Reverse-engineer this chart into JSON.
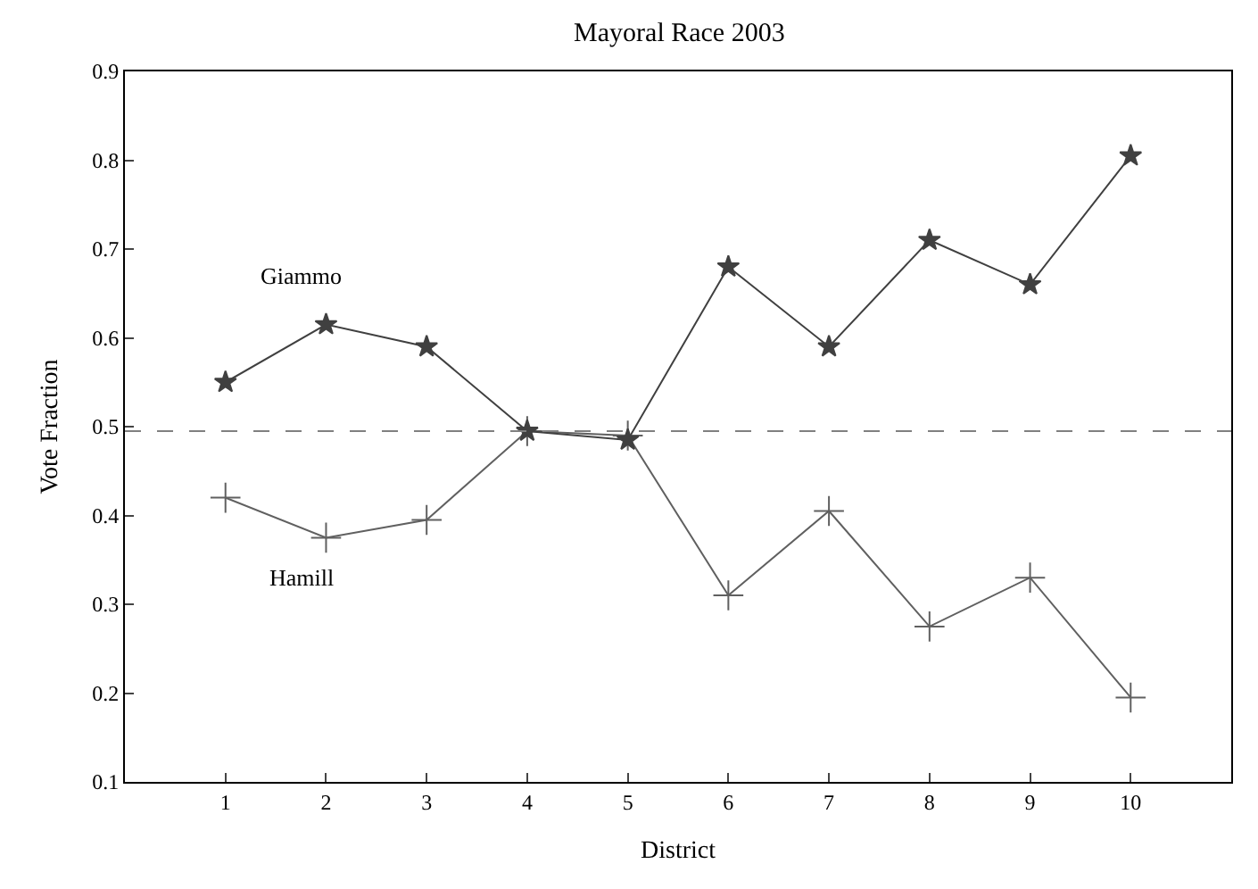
{
  "chart_data": {
    "type": "line",
    "title": "Mayoral Race 2003",
    "xlabel": "District",
    "ylabel": "Vote Fraction",
    "x": [
      1,
      2,
      3,
      4,
      5,
      6,
      7,
      8,
      9,
      10
    ],
    "series": [
      {
        "name": "Giammo",
        "color": "#404040",
        "marker": "star",
        "values": [
          0.55,
          0.615,
          0.59,
          0.495,
          0.485,
          0.68,
          0.59,
          0.71,
          0.66,
          0.805
        ]
      },
      {
        "name": "Hamill",
        "color": "#606060",
        "marker": "cross",
        "values": [
          0.42,
          0.375,
          0.395,
          0.495,
          0.49,
          0.31,
          0.405,
          0.275,
          0.33,
          0.195
        ]
      }
    ],
    "xlim": [
      0,
      11
    ],
    "xticks": [
      1,
      2,
      3,
      4,
      5,
      6,
      7,
      8,
      9,
      10
    ],
    "ylim": [
      0.1,
      0.9
    ],
    "yticks": [
      0.1,
      0.2,
      0.3,
      0.4,
      0.5,
      0.6,
      0.7,
      0.8,
      0.9
    ],
    "ref_lines": [
      {
        "axis": "y",
        "value": 0.495,
        "color": "#808080",
        "line_style": "dashed"
      }
    ],
    "legend": false,
    "line_style": "solid"
  }
}
